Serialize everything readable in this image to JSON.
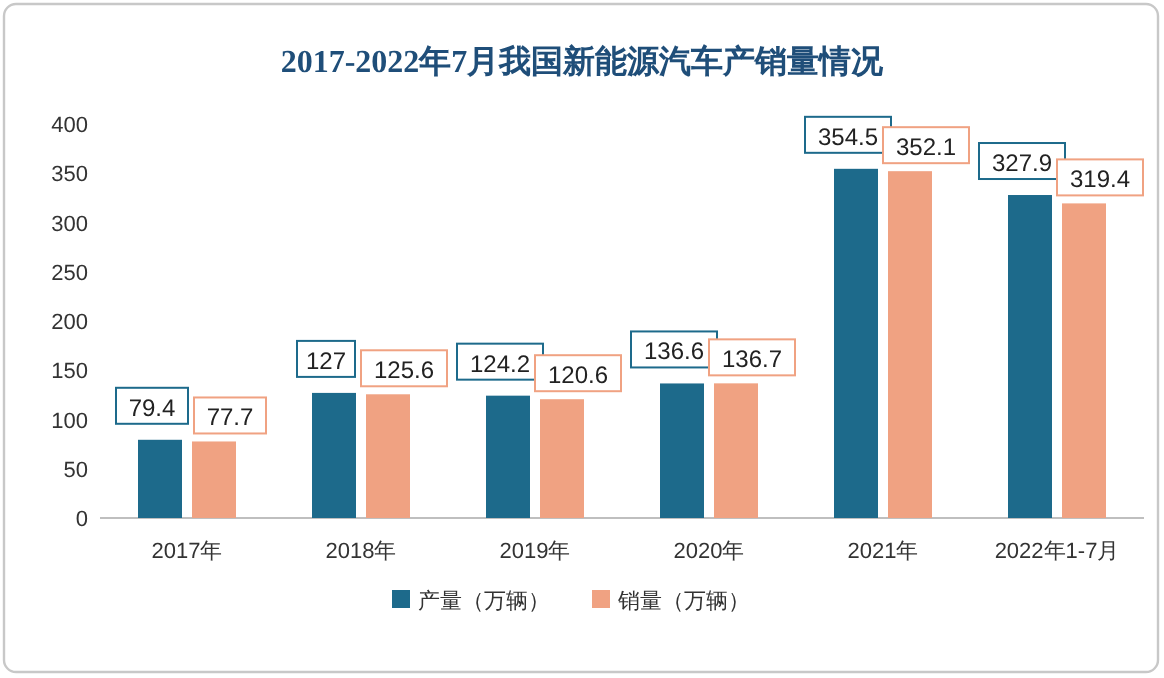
{
  "chart_data": {
    "type": "bar",
    "title": "2017-2022年7月我国新能源汽车产销量情况",
    "categories": [
      "2017年",
      "2018年",
      "2019年",
      "2020年",
      "2021年",
      "2022年1-7月"
    ],
    "series": [
      {
        "name": "产量（万辆）",
        "color": "#1d6a8b",
        "values": [
          79.4,
          127,
          124.2,
          136.6,
          354.5,
          327.9
        ]
      },
      {
        "name": "销量（万辆）",
        "color": "#f0a282",
        "values": [
          77.7,
          125.6,
          120.6,
          136.7,
          352.1,
          319.4
        ]
      }
    ],
    "ylim": [
      0,
      400
    ],
    "yticks": [
      0,
      50,
      100,
      150,
      200,
      250,
      300,
      350,
      400
    ],
    "grid": false,
    "legend": "bottom",
    "data_labels": true
  }
}
